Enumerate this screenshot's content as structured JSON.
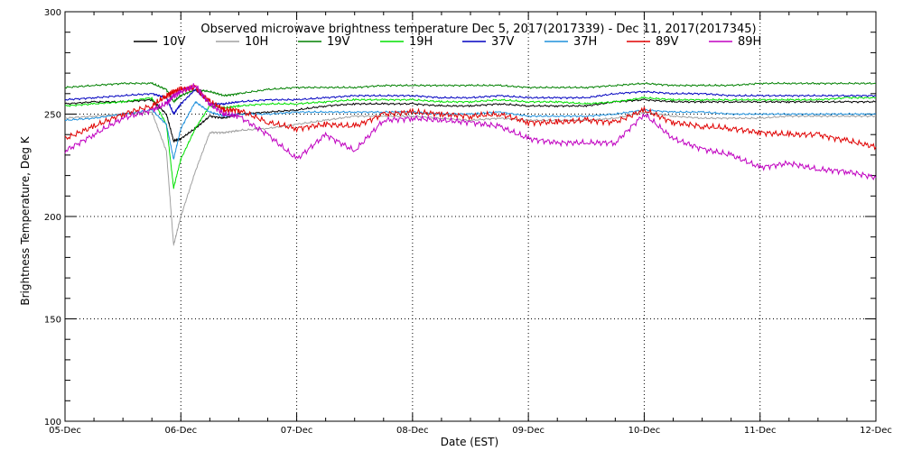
{
  "chart_data": {
    "type": "line",
    "title": "Observed microwave brightness temperature Dec  5, 2017(2017339) - Dec 11, 2017(2017345)",
    "xlabel": "Date (EST)",
    "ylabel": "Brightness Temperature, Deg K",
    "xlim": [
      "2017-12-05",
      "2017-12-12"
    ],
    "ylim": [
      100,
      300
    ],
    "x_ticks": [
      "05-Dec",
      "06-Dec",
      "07-Dec",
      "08-Dec",
      "09-Dec",
      "10-Dec",
      "11-Dec",
      "12-Dec"
    ],
    "y_ticks": [
      100,
      150,
      200,
      250,
      300
    ],
    "grid": "dotted",
    "legend": "top",
    "x": [
      "2017-12-05T00:00",
      "2017-12-05T06:00",
      "2017-12-05T12:00",
      "2017-12-05T18:00",
      "2017-12-05T21:00",
      "2017-12-05T22:30",
      "2017-12-06T00:00",
      "2017-12-06T03:00",
      "2017-12-06T06:00",
      "2017-12-06T09:00",
      "2017-12-06T12:00",
      "2017-12-06T18:00",
      "2017-12-07T00:00",
      "2017-12-07T06:00",
      "2017-12-07T12:00",
      "2017-12-07T18:00",
      "2017-12-08T00:00",
      "2017-12-08T06:00",
      "2017-12-08T12:00",
      "2017-12-08T18:00",
      "2017-12-09T00:00",
      "2017-12-09T06:00",
      "2017-12-09T12:00",
      "2017-12-09T18:00",
      "2017-12-10T00:00",
      "2017-12-10T06:00",
      "2017-12-10T12:00",
      "2017-12-10T18:00",
      "2017-12-11T00:00",
      "2017-12-11T06:00",
      "2017-12-11T12:00",
      "2017-12-11T18:00",
      "2017-12-12T00:00"
    ],
    "series": [
      {
        "name": "10V",
        "color": "#000000",
        "values": [
          255,
          256,
          256,
          257,
          250,
          237,
          238,
          243,
          249,
          248,
          250,
          251,
          252,
          254,
          255,
          255,
          255,
          254,
          254,
          255,
          254,
          254,
          254,
          256,
          257,
          256,
          256,
          256,
          256,
          256,
          256,
          256,
          256
        ]
      },
      {
        "name": "10H",
        "color": "#a0a0a0",
        "values": [
          248,
          249,
          250,
          251,
          232,
          186,
          200,
          222,
          241,
          241,
          242,
          243,
          245,
          247,
          249,
          249,
          249,
          248,
          247,
          248,
          247,
          247,
          247,
          248,
          251,
          249,
          248,
          248,
          248,
          249,
          249,
          249,
          249
        ]
      },
      {
        "name": "19V",
        "color": "#008000",
        "values": [
          263,
          264,
          265,
          265,
          262,
          256,
          259,
          262,
          261,
          259,
          260,
          262,
          263,
          263,
          263,
          264,
          264,
          264,
          264,
          264,
          263,
          263,
          263,
          264,
          265,
          264,
          264,
          264,
          265,
          265,
          265,
          265,
          265
        ]
      },
      {
        "name": "19H",
        "color": "#00e000",
        "values": [
          254,
          255,
          256,
          258,
          245,
          214,
          228,
          243,
          254,
          253,
          254,
          255,
          255,
          256,
          257,
          257,
          257,
          256,
          256,
          257,
          256,
          256,
          255,
          256,
          258,
          257,
          257,
          257,
          257,
          257,
          257,
          258,
          258
        ]
      },
      {
        "name": "37V",
        "color": "#0000c0",
        "values": [
          257,
          258,
          259,
          260,
          258,
          250,
          255,
          262,
          255,
          255,
          256,
          257,
          257,
          258,
          259,
          259,
          259,
          258,
          258,
          259,
          258,
          258,
          258,
          260,
          261,
          260,
          260,
          259,
          259,
          259,
          259,
          259,
          259
        ]
      },
      {
        "name": "37H",
        "color": "#1e90dc",
        "values": [
          247,
          248,
          250,
          252,
          245,
          228,
          243,
          256,
          251,
          249,
          250,
          250,
          251,
          251,
          251,
          251,
          251,
          250,
          250,
          251,
          249,
          249,
          249,
          250,
          252,
          251,
          251,
          250,
          250,
          250,
          250,
          250,
          250
        ]
      },
      {
        "name": "89V",
        "color": "#e00000",
        "values": [
          238,
          244,
          250,
          254,
          259,
          261,
          262,
          263,
          256,
          252,
          252,
          246,
          243,
          245,
          244,
          250,
          251,
          250,
          249,
          250,
          246,
          246,
          247,
          246,
          252,
          246,
          244,
          243,
          241,
          240,
          240,
          237,
          234
        ]
      },
      {
        "name": "89H",
        "color": "#c000c0",
        "values": [
          232,
          240,
          248,
          252,
          255,
          259,
          261,
          264,
          255,
          250,
          249,
          240,
          228,
          240,
          232,
          247,
          248,
          247,
          246,
          244,
          238,
          236,
          236,
          236,
          250,
          238,
          233,
          230,
          224,
          226,
          223,
          222,
          219
        ]
      }
    ]
  }
}
